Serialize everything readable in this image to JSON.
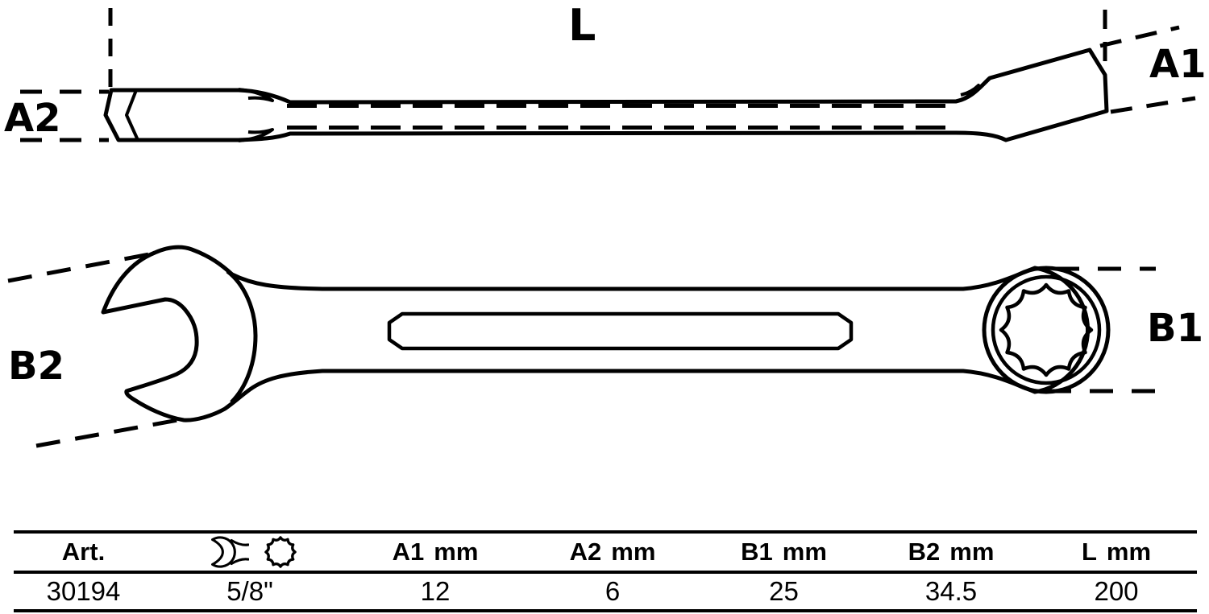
{
  "diagram": {
    "labels": {
      "l": "L",
      "a1": "A1",
      "a2": "A2",
      "b1": "B1",
      "b2": "B2"
    }
  },
  "table": {
    "header": {
      "art": "Art.",
      "a1": "A1",
      "a2": "A2",
      "b1": "B1",
      "b2": "B2",
      "l": "L",
      "unit": "mm",
      "icons": [
        {
          "name": "open-end-wrench-icon"
        },
        {
          "name": "twelve-point-ring-icon"
        }
      ]
    },
    "row": {
      "art": "30194",
      "size": "5/8\"",
      "a1": "12",
      "a2": "6",
      "b1": "25",
      "b2": "34.5",
      "l": "200"
    }
  },
  "colors": {
    "ink": "#000000",
    "background": "#ffffff"
  }
}
